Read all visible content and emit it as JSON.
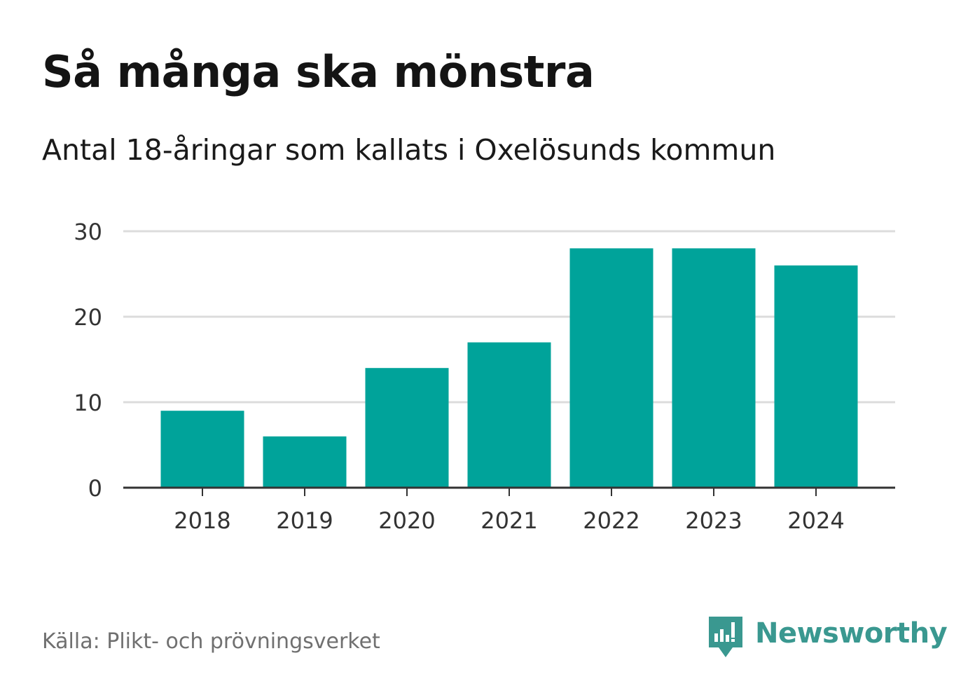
{
  "header": {
    "title": "Så många ska mönstra",
    "subtitle": "Antal 18-åringar som kallats i Oxelösunds kommun"
  },
  "footer": {
    "source": "Källa: Plikt- och prövningsverket",
    "brand": "Newsworthy"
  },
  "colors": {
    "bar": "#00a39a",
    "grid": "#dcdcdc",
    "axis": "#333333",
    "brand": "#3a9890"
  },
  "chart_data": {
    "type": "bar",
    "title": "Så många ska mönstra",
    "subtitle": "Antal 18-åringar som kallats i Oxelösunds kommun",
    "categories": [
      "2018",
      "2019",
      "2020",
      "2021",
      "2022",
      "2023",
      "2024"
    ],
    "values": [
      9,
      6,
      14,
      17,
      28,
      28,
      26
    ],
    "xlabel": "",
    "ylabel": "",
    "ylim": [
      0,
      30
    ],
    "yticks": [
      0,
      10,
      20,
      30
    ],
    "grid": true
  }
}
